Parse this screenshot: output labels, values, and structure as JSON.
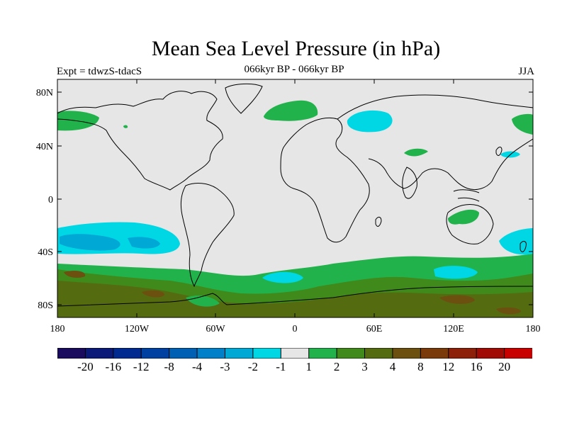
{
  "map": {
    "title": "Mean Sea Level Pressure (in hPa)",
    "subtitle": "066kyr BP - 066kyr BP",
    "left_label": "Expt = tdwzS-tdacS",
    "right_label": "JJA",
    "lat_ticks": [
      "80N",
      "40N",
      "0",
      "40S",
      "80S"
    ],
    "lon_ticks": [
      "180",
      "120W",
      "60W",
      "0",
      "60E",
      "120E",
      "180"
    ],
    "colors": {
      "neutral": "#e6e6e6",
      "level_-2": "#00d7e4",
      "level_-3": "#00a8d5",
      "level_1": "#22b24c",
      "level_2": "#3f8a1a",
      "level_3": "#556b10",
      "level_4": "#6b5010"
    }
  },
  "colorbar": {
    "labels": [
      "-20",
      "-16",
      "-12",
      "-8",
      "-4",
      "-3",
      "-2",
      "-1",
      "1",
      "2",
      "3",
      "4",
      "8",
      "12",
      "16",
      "20"
    ],
    "colors": [
      "#1a0b5e",
      "#0b1a78",
      "#002a8f",
      "#0040a0",
      "#0060b4",
      "#0080c8",
      "#00a8d5",
      "#00d7e4",
      "#e6e6e6",
      "#22b24c",
      "#3f8a1a",
      "#556b10",
      "#6b5010",
      "#7a3a0a",
      "#8c2008",
      "#a00c05",
      "#c80000"
    ]
  }
}
